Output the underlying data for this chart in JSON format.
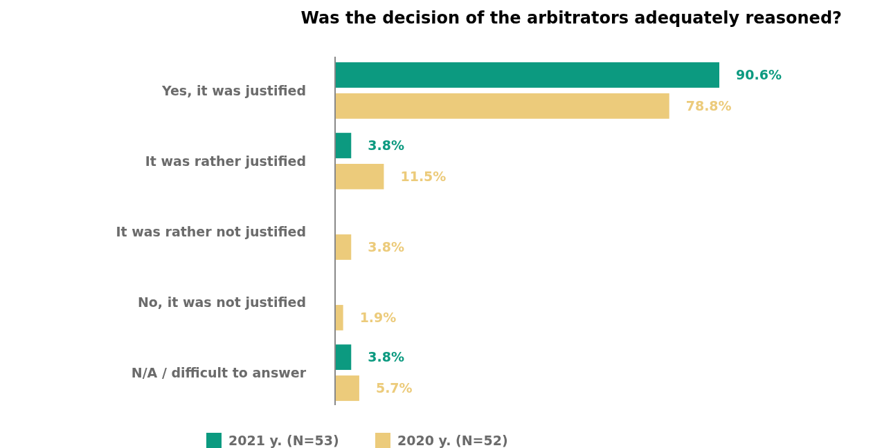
{
  "chart_data": {
    "type": "bar",
    "orientation": "horizontal",
    "title": "Was the decision of the arbitrators adequately reasoned?",
    "categories": [
      "Yes, it was justified",
      "It was rather justified",
      "It was rather not justified",
      "No, it was not justified",
      "N/A / difficult to answer"
    ],
    "series": [
      {
        "name": "2021 y. (N=53)",
        "color": "#0c9a80",
        "values": [
          90.6,
          3.8,
          null,
          null,
          3.8
        ],
        "value_labels": [
          "90.6%",
          "3.8%",
          null,
          null,
          "3.8%"
        ]
      },
      {
        "name": "2020 y. (N=52)",
        "color": "#eccb7b",
        "values": [
          78.8,
          11.5,
          3.8,
          1.9,
          5.7
        ],
        "value_labels": [
          "78.8%",
          "11.5%",
          "3.8%",
          "1.9%",
          "5.7%"
        ]
      }
    ],
    "legend": "bottom"
  }
}
